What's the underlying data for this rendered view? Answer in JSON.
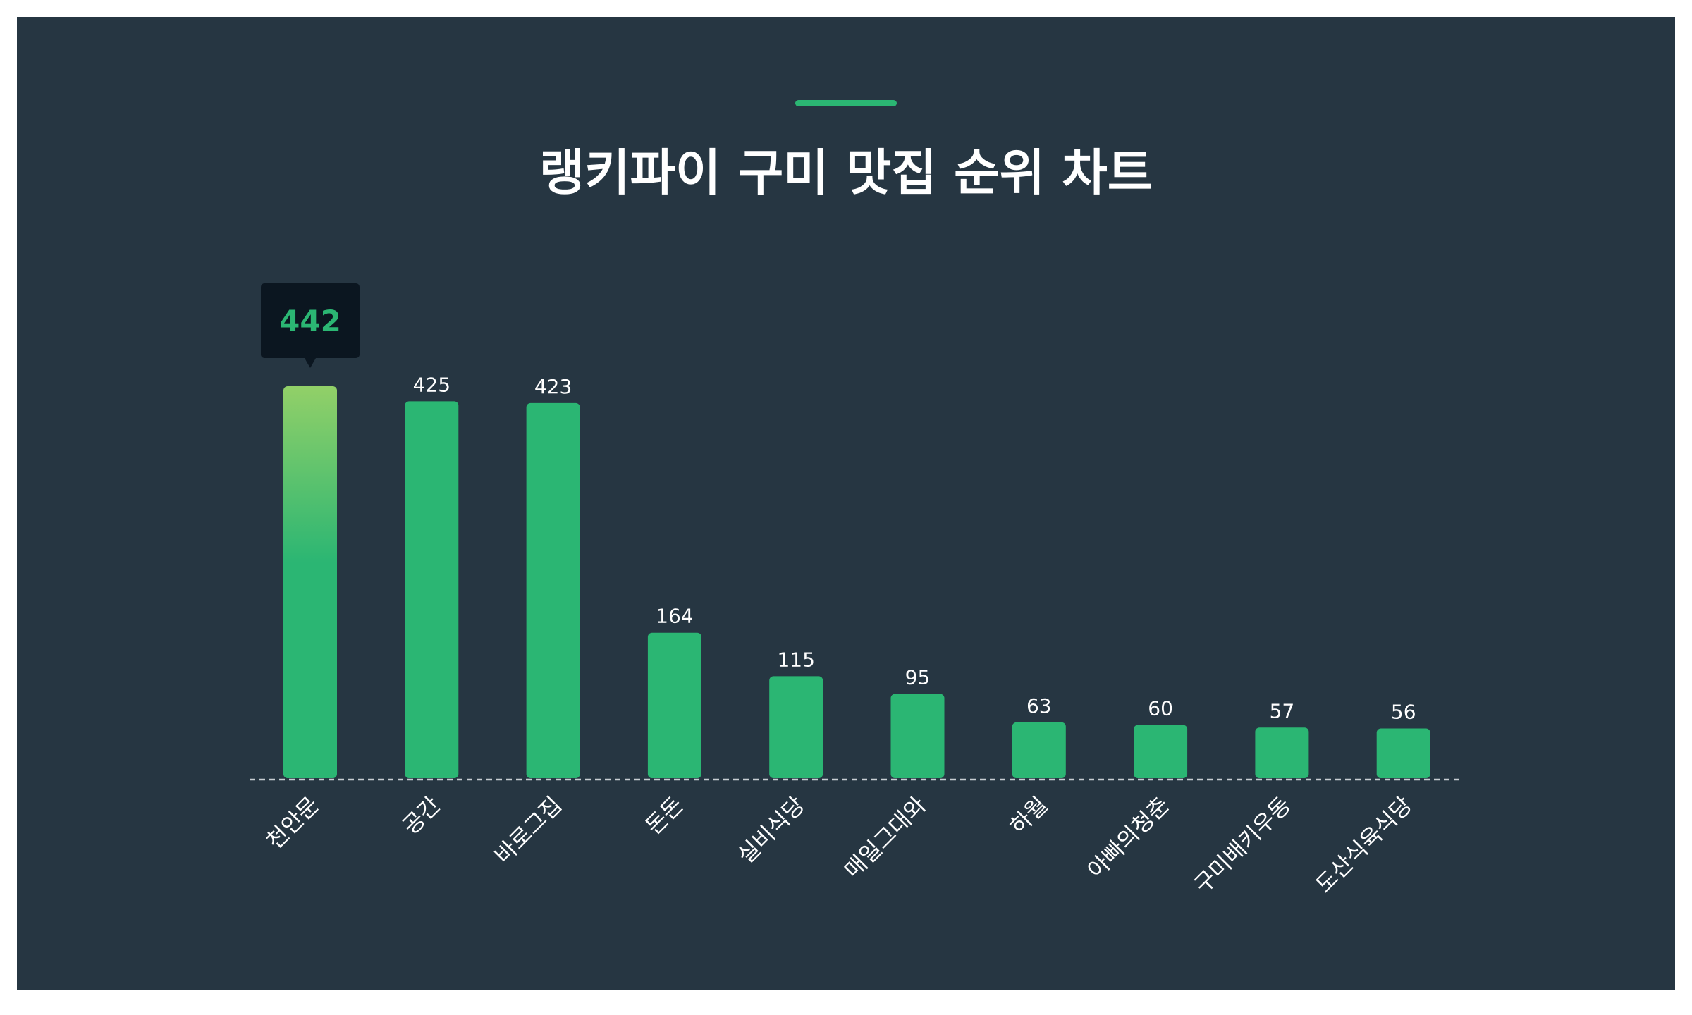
{
  "title": "랭키파이 구미 맛집 순위 차트",
  "colors": {
    "background": "#263642",
    "bar": "#2bb673",
    "bar_highlight_top": "#92d068",
    "tooltip_bg": "#0b1620",
    "tooltip_text": "#2bb673",
    "baseline": "#c8ced3"
  },
  "tooltip": {
    "value": "442"
  },
  "chart_data": {
    "type": "bar",
    "title": "랭키파이 구미 맛집 순위 차트",
    "xlabel": "",
    "ylabel": "",
    "categories": [
      "천안문",
      "공간",
      "바로그집",
      "돈돈",
      "실비식당",
      "매일그대와",
      "하월",
      "아빠의청춘",
      "구미배키우동",
      "도산식육식당"
    ],
    "values": [
      442,
      425,
      423,
      164,
      115,
      95,
      63,
      60,
      57,
      56
    ],
    "ylim": [
      0,
      442
    ],
    "highlighted_index": 0,
    "grid": false,
    "legend": "none"
  }
}
